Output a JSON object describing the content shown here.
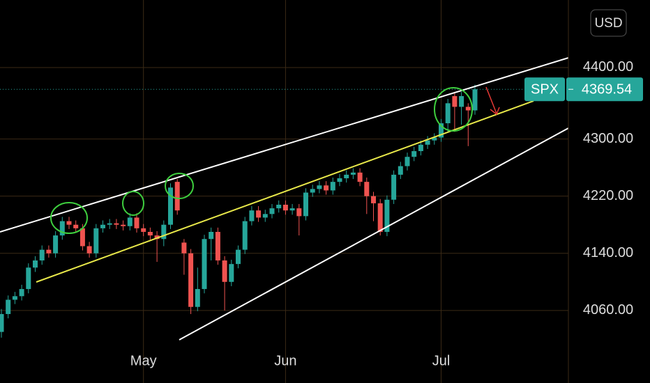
{
  "chart_data": {
    "type": "candlestick",
    "symbol": "SPX",
    "currency": "USD",
    "categories": [
      null,
      null,
      null,
      null,
      null,
      null,
      null,
      null,
      null,
      null,
      null,
      null,
      null,
      null,
      null,
      null,
      null,
      null,
      null,
      null,
      null,
      "May",
      null,
      null,
      null,
      null,
      null,
      null,
      null,
      null,
      null,
      null,
      null,
      null,
      null,
      null,
      null,
      null,
      null,
      null,
      null,
      null,
      "Jun",
      null,
      null,
      null,
      null,
      null,
      null,
      null,
      null,
      null,
      null,
      null,
      null,
      null,
      null,
      null,
      null,
      null,
      null,
      null,
      null,
      null,
      null,
      "Jul",
      null,
      null,
      null,
      null,
      null
    ],
    "open": [
      4030,
      4055,
      4075,
      4080,
      4090,
      4120,
      4130,
      4145,
      4140,
      4165,
      4185,
      4180,
      4175,
      4150,
      4140,
      4175,
      4180,
      4182,
      4180,
      4178,
      4190,
      4175,
      4170,
      4165,
      4160,
      4180,
      4240,
      4155,
      4140,
      4065,
      4090,
      4160,
      4170,
      4130,
      4100,
      4125,
      4145,
      4185,
      4200,
      4190,
      4195,
      4203,
      4208,
      4200,
      4203,
      4192,
      4225,
      4230,
      4235,
      4228,
      4240,
      4245,
      4250,
      4253,
      4240,
      4220,
      4210,
      4170,
      4215,
      4250,
      4262,
      4275,
      4283,
      4292,
      4298,
      4302,
      4322,
      4360,
      4345,
      4345,
      4340
    ],
    "high": [
      4062,
      4081,
      4086,
      4096,
      4126,
      4136,
      4151,
      4151,
      4171,
      4191,
      4191,
      4186,
      4181,
      4156,
      4181,
      4186,
      4188,
      4188,
      4186,
      4196,
      4196,
      4181,
      4176,
      4171,
      4186,
      4238,
      4244,
      4160,
      4146,
      4120,
      4166,
      4176,
      4176,
      4136,
      4131,
      4151,
      4191,
      4206,
      4206,
      4201,
      4209,
      4214,
      4214,
      4209,
      4209,
      4231,
      4236,
      4241,
      4241,
      4246,
      4251,
      4256,
      4259,
      4259,
      4246,
      4226,
      4216,
      4221,
      4256,
      4268,
      4281,
      4289,
      4298,
      4304,
      4308,
      4328,
      4356,
      4366,
      4366,
      4350,
      4376
    ],
    "low": [
      4022,
      4049,
      4069,
      4074,
      4084,
      4114,
      4124,
      4134,
      4134,
      4159,
      4174,
      4169,
      4144,
      4134,
      4134,
      4169,
      4174,
      4174,
      4172,
      4172,
      4169,
      4164,
      4159,
      4128,
      4150,
      4174,
      4194,
      4110,
      4055,
      4059,
      4084,
      4130,
      4124,
      4060,
      4094,
      4119,
      4139,
      4179,
      4184,
      4184,
      4189,
      4197,
      4194,
      4194,
      4165,
      4186,
      4219,
      4224,
      4222,
      4222,
      4234,
      4239,
      4244,
      4234,
      4195,
      4185,
      4165,
      4164,
      4209,
      4244,
      4256,
      4269,
      4277,
      4286,
      4292,
      4296,
      4310,
      4310,
      4320,
      4290,
      4334
    ],
    "close": [
      4055,
      4075,
      4080,
      4090,
      4120,
      4130,
      4145,
      4140,
      4165,
      4185,
      4180,
      4175,
      4150,
      4140,
      4175,
      4180,
      4182,
      4180,
      4178,
      4190,
      4175,
      4170,
      4165,
      4160,
      4180,
      4232,
      4200,
      4140,
      4065,
      4090,
      4160,
      4170,
      4130,
      4100,
      4125,
      4145,
      4185,
      4200,
      4190,
      4195,
      4203,
      4208,
      4200,
      4203,
      4192,
      4225,
      4230,
      4235,
      4228,
      4240,
      4245,
      4250,
      4253,
      4240,
      4220,
      4210,
      4170,
      4215,
      4250,
      4262,
      4275,
      4283,
      4292,
      4298,
      4302,
      4322,
      4350,
      4345,
      4360,
      4340,
      4369.54
    ],
    "up_color": "#26a69a",
    "down_color": "#ef5350",
    "ylim": [
      4012.1,
      4494.5
    ],
    "yticks": [
      {
        "value": 4060,
        "label": "4060.00"
      },
      {
        "value": 4140,
        "label": "4140.00"
      },
      {
        "value": 4220,
        "label": "4220.00"
      },
      {
        "value": 4300,
        "label": "4300.00"
      },
      {
        "value": 4400,
        "label": "4400.00"
      }
    ],
    "grid": true
  }
}
